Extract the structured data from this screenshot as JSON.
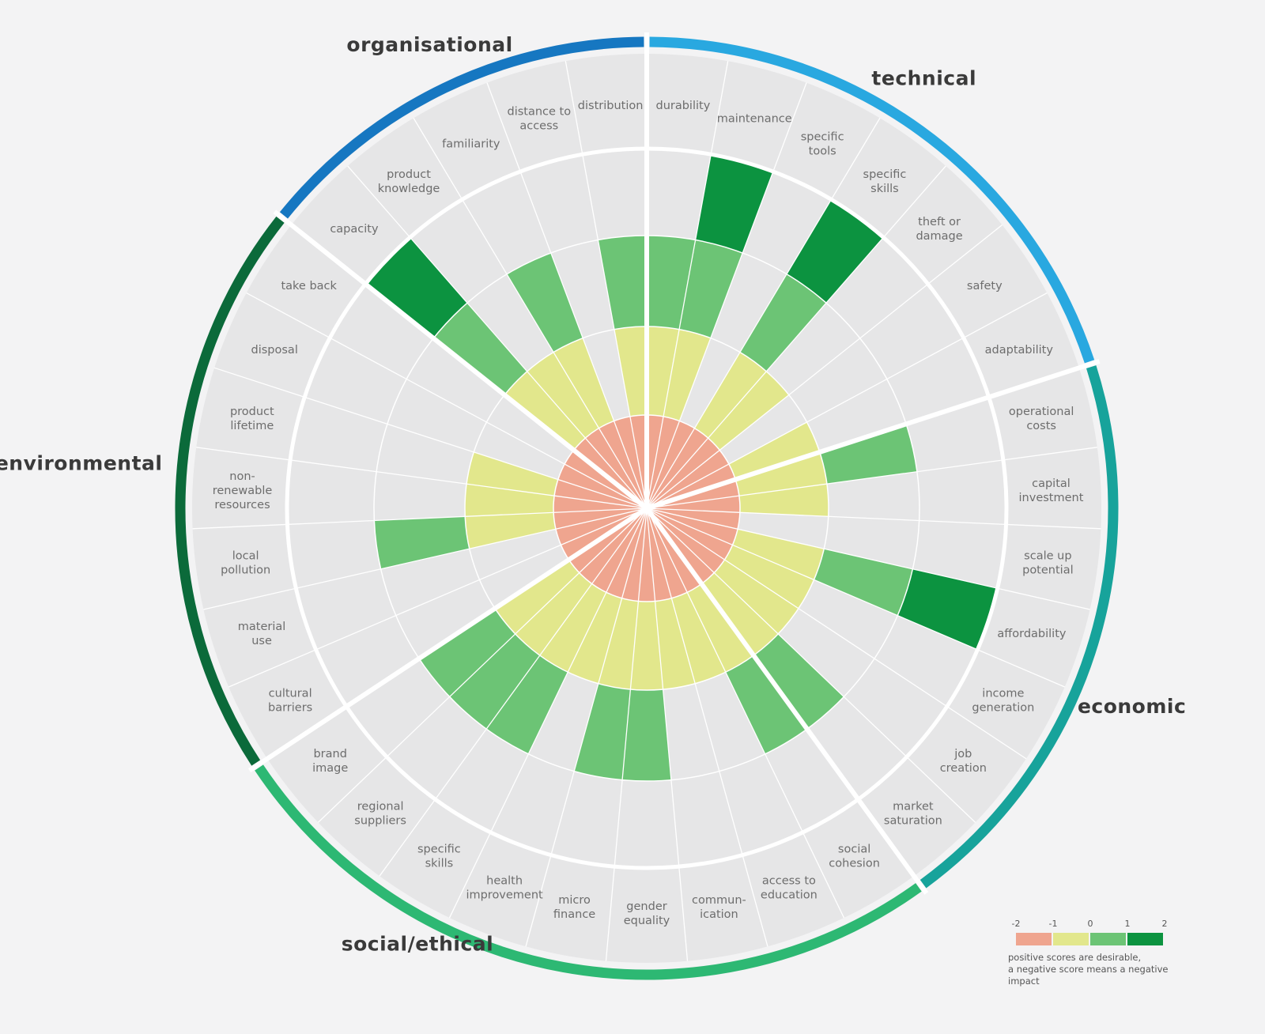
{
  "chart_data": {
    "type": "radial-bar",
    "title": "",
    "scale": [
      -2,
      -1,
      0,
      1,
      2
    ],
    "categories": [
      {
        "name": "technical",
        "color": "#29a8e0",
        "items": [
          {
            "label": [
              "durability"
            ],
            "value": 1
          },
          {
            "label": [
              "maintenance"
            ],
            "value": 2
          },
          {
            "label": [
              "specific",
              "tools"
            ],
            "value": -1
          },
          {
            "label": [
              "specific",
              "skills"
            ],
            "value": 2
          },
          {
            "label": [
              "theft or",
              "damage"
            ],
            "value": 0
          },
          {
            "label": [
              "safety"
            ],
            "value": -1
          },
          {
            "label": [
              "adaptability"
            ],
            "value": 0
          }
        ]
      },
      {
        "name": "economic",
        "color": "#17a39b",
        "items": [
          {
            "label": [
              "operational",
              "costs"
            ],
            "value": 1
          },
          {
            "label": [
              "capital",
              "investment"
            ],
            "value": 0
          },
          {
            "label": [
              "scale up",
              "potential"
            ],
            "value": -1
          },
          {
            "label": [
              "affordability"
            ],
            "value": 2
          },
          {
            "label": [
              "income",
              "generation"
            ],
            "value": 0
          },
          {
            "label": [
              "job",
              "creation"
            ],
            "value": 0
          },
          {
            "label": [
              "market",
              "saturation"
            ],
            "value": 1
          }
        ]
      },
      {
        "name": "social/ethical",
        "color": "#2db873",
        "items": [
          {
            "label": [
              "social",
              "cohesion"
            ],
            "value": 1
          },
          {
            "label": [
              "access to",
              "education"
            ],
            "value": 0
          },
          {
            "label": [
              "commun-",
              "ication"
            ],
            "value": 0
          },
          {
            "label": [
              "gender",
              "equality"
            ],
            "value": 1
          },
          {
            "label": [
              "micro",
              "finance"
            ],
            "value": 1
          },
          {
            "label": [
              "health",
              "improvement"
            ],
            "value": 0
          },
          {
            "label": [
              "specific",
              "skills"
            ],
            "value": 1
          },
          {
            "label": [
              "regional",
              "suppliers"
            ],
            "value": 1
          },
          {
            "label": [
              "brand",
              "image"
            ],
            "value": 1
          }
        ]
      },
      {
        "name": "environmental",
        "color": "#0b6a3a",
        "items": [
          {
            "label": [
              "cultural",
              "barriers"
            ],
            "value": -1
          },
          {
            "label": [
              "material",
              "use"
            ],
            "value": -1
          },
          {
            "label": [
              "local",
              "pollution"
            ],
            "value": 1
          },
          {
            "label": [
              "non-",
              "renewable",
              "resources"
            ],
            "value": 0
          },
          {
            "label": [
              "product",
              "lifetime"
            ],
            "value": 0
          },
          {
            "label": [
              "disposal"
            ],
            "value": -1
          },
          {
            "label": [
              "take back"
            ],
            "value": -1
          }
        ]
      },
      {
        "name": "organisational",
        "color": "#1677c1",
        "items": [
          {
            "label": [
              "capacity"
            ],
            "value": 2
          },
          {
            "label": [
              "product",
              "knowledge"
            ],
            "value": 0
          },
          {
            "label": [
              "familiarity"
            ],
            "value": 1
          },
          {
            "label": [
              "distance to",
              "access"
            ],
            "value": -1
          },
          {
            "label": [
              "distribution"
            ],
            "value": 1
          }
        ]
      }
    ],
    "legend": {
      "ticks": [
        "-2",
        "-1",
        "0",
        "1",
        "2"
      ],
      "colors": [
        "#efa58f",
        "#e2e78c",
        "#6cc475",
        "#0c9340"
      ],
      "note": [
        "positive scores are desirable,",
        "a negative score means a negative",
        "impact"
      ]
    }
  }
}
